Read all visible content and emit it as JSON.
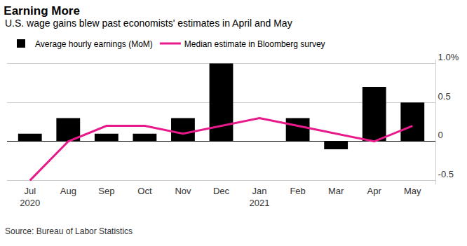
{
  "chart_data": {
    "type": "bar",
    "title": "Earning More",
    "subtitle": "U.S. wage gains blew past economists' estimates in April and May",
    "source": "Source: Bureau of Labor Statistics",
    "categories": [
      "Jul\n2020",
      "Aug",
      "Sep",
      "Oct",
      "Nov",
      "Dec",
      "Jan\n2021",
      "Feb",
      "Mar",
      "Apr",
      "May"
    ],
    "series": [
      {
        "name": "Average hourly earnings (MoM)",
        "type": "bar",
        "color": "#000000",
        "values": [
          0.1,
          0.3,
          0.1,
          0.1,
          0.3,
          1.0,
          0.0,
          0.3,
          -0.1,
          0.7,
          0.5
        ]
      },
      {
        "name": "Median estimate in Bloomberg survey",
        "type": "line",
        "color": "#e8198b",
        "values": [
          -0.5,
          0.0,
          0.2,
          0.2,
          0.1,
          0.2,
          0.3,
          0.2,
          0.1,
          0.0,
          0.2
        ]
      }
    ],
    "ylim": [
      -0.55,
      1.05
    ],
    "yticks": [
      -0.5,
      0,
      0.5,
      {
        "value": 1,
        "label": "1.0%"
      }
    ],
    "grid": true,
    "legend": "upper left"
  }
}
